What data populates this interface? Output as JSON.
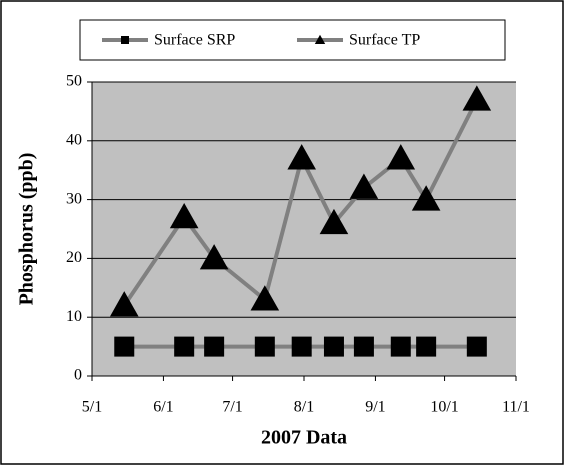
{
  "chart_data": {
    "type": "line",
    "x_label": "2007 Data",
    "y_label": "Phosphorus  (ppb)",
    "x": [
      "5/15",
      "6/10",
      "6/23",
      "7/15",
      "7/31",
      "8/14",
      "8/27",
      "9/12",
      "9/23",
      "10/15"
    ],
    "series": [
      {
        "name": "Surface SRP",
        "color": "#808080",
        "marker": "square",
        "values": [
          5,
          5,
          5,
          5,
          5,
          5,
          5,
          5,
          5,
          5
        ]
      },
      {
        "name": "Surface TP",
        "color": "#808080",
        "marker": "triangle",
        "values": [
          12,
          27,
          20,
          13,
          37,
          26,
          32,
          37,
          30,
          47
        ]
      }
    ],
    "xlim": [
      "5/1",
      "11/1"
    ],
    "xticks": [
      "5/1",
      "6/1",
      "7/1",
      "8/1",
      "9/1",
      "10/1",
      "11/1"
    ],
    "ylim": [
      0,
      50
    ],
    "yticks": [
      0,
      10,
      20,
      30,
      40,
      50
    ],
    "grid": true,
    "legend": "top"
  }
}
